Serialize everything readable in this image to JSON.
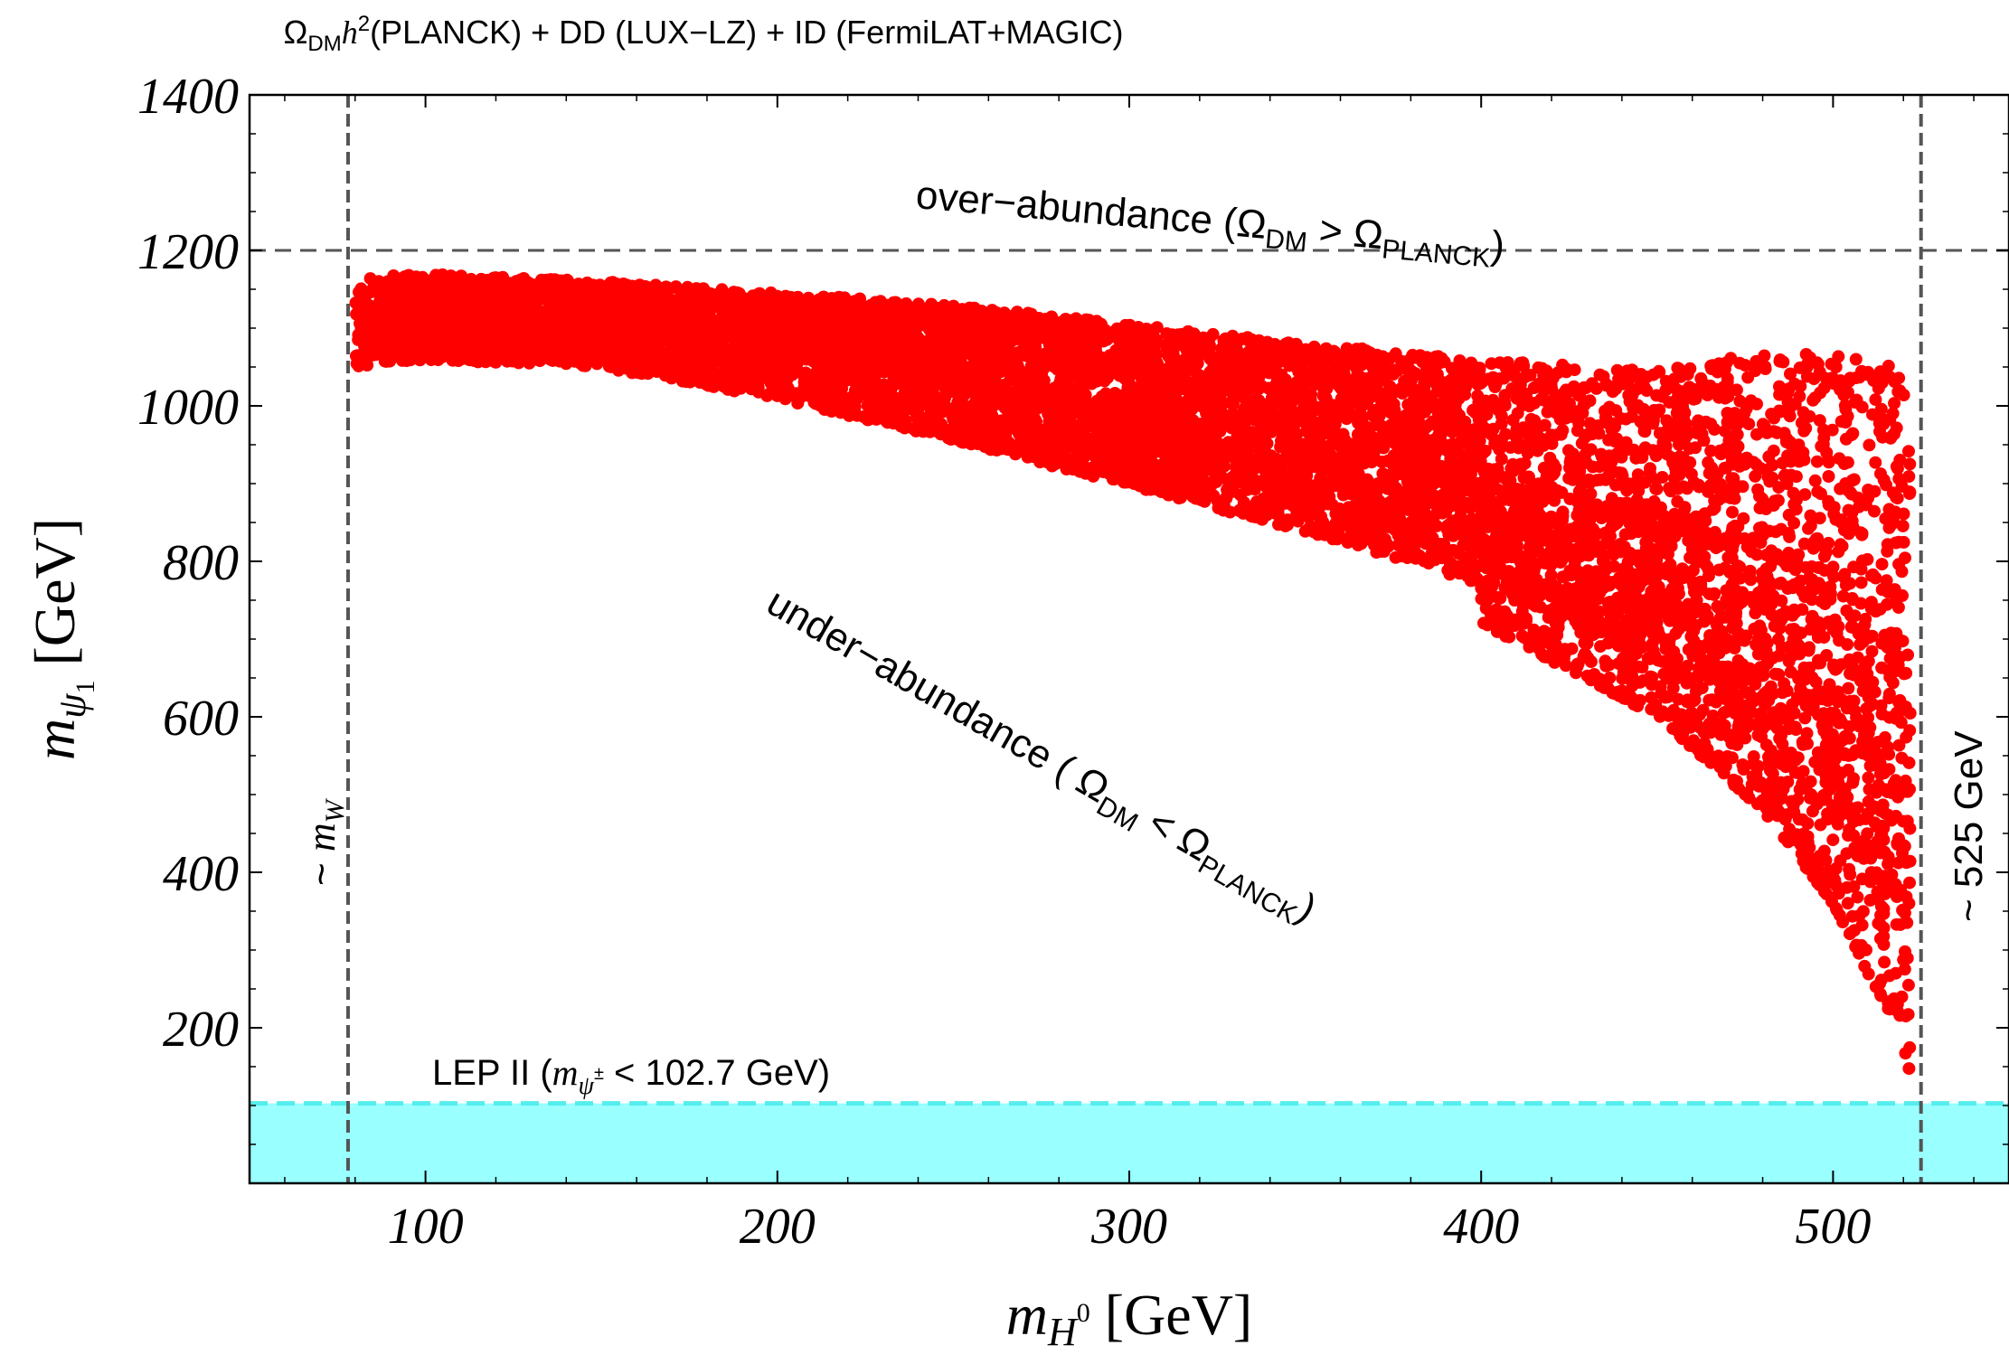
{
  "chart_data": {
    "type": "scatter",
    "title": {
      "omega": "Ω",
      "omega_sub": "DM",
      "h": "h",
      "h_sup": "2",
      "rest": "(PLANCK) + DD (LUX−LZ) + ID (FermiLAT+MAGIC)"
    },
    "xlabel": {
      "m": "m",
      "sub": "H",
      "sub_sup": "0",
      "unit": " [GeV]"
    },
    "ylabel": {
      "m": "m",
      "sub": "ψ",
      "sub_sub": "1",
      "unit": " [GeV]"
    },
    "xlim": [
      50,
      550
    ],
    "ylim": [
      0,
      1400
    ],
    "x_ticks": [
      "100",
      "200",
      "300",
      "400",
      "500"
    ],
    "x_tick_values": [
      100,
      200,
      300,
      400,
      500
    ],
    "y_ticks": [
      "200",
      "400",
      "600",
      "800",
      "1000",
      "1200",
      "1400"
    ],
    "y_tick_values": [
      200,
      400,
      600,
      800,
      1000,
      1200,
      1400
    ],
    "point_color": "#ff0000",
    "lep_color": "#99ffff",
    "lep_line_color": "#55eeee",
    "reference_lines": {
      "over_abundance_y": 1200,
      "m_w_x": 78,
      "max_x": 525,
      "lep_y": 102.7
    },
    "annotations": {
      "over": {
        "text": "over−abundance (Ω",
        "sub1": "DM",
        "mid": " > Ω",
        "sub2": "PLANCK",
        "end": ")"
      },
      "under": {
        "text": "under−abundance ( Ω",
        "sub1": "DM",
        "mid": " < Ω",
        "sub2": "PLANCK",
        "end": ")"
      },
      "lep": {
        "text": "LEP II (",
        "m": "m",
        "sub": "ψ",
        "sub_sup": "±",
        "end": " < 102.7 GeV)"
      },
      "mw": {
        "tilde": "~ ",
        "m": "m",
        "sub": "W"
      },
      "gev525": "~ 525 GeV"
    },
    "scatter_region": {
      "x": [
        80,
        100,
        150,
        200,
        250,
        300,
        350,
        400,
        450,
        480,
        500,
        510,
        520,
        522
      ],
      "upper": [
        1165,
        1170,
        1160,
        1145,
        1130,
        1105,
        1080,
        1060,
        1045,
        1070,
        1070,
        1060,
        1050,
        1040
      ],
      "lower": [
        1030,
        1040,
        1030,
        985,
        925,
        860,
        795,
        720,
        600,
        480,
        360,
        270,
        190,
        110
      ]
    },
    "n_points": 9000
  }
}
